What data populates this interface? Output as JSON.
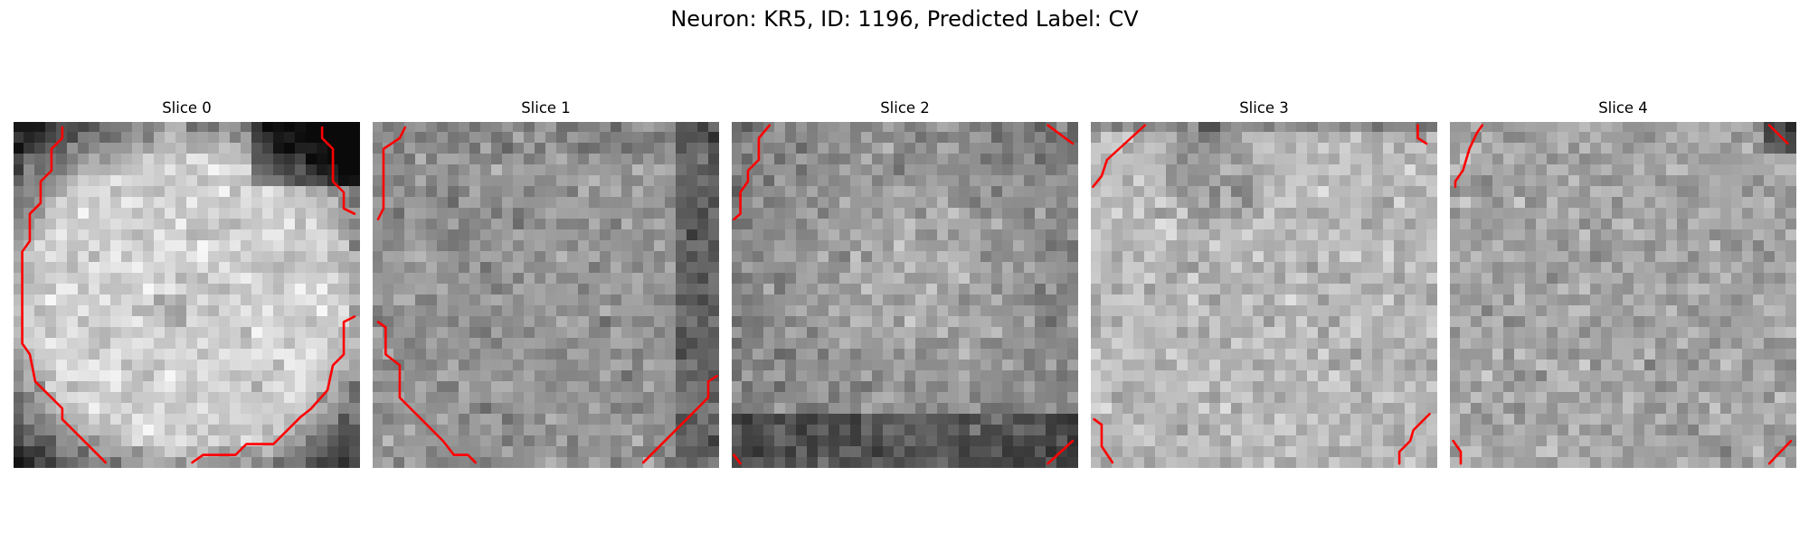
{
  "figure": {
    "title": "Neuron: KR5, ID: 1196, Predicted Label: CV"
  },
  "panels": [
    {
      "title": "Slice 0"
    },
    {
      "title": "Slice 1"
    },
    {
      "title": "Slice 2"
    },
    {
      "title": "Slice 3"
    },
    {
      "title": "Slice 4"
    }
  ],
  "colors": {
    "contour": "#ff0000",
    "background": "#ffffff"
  }
}
